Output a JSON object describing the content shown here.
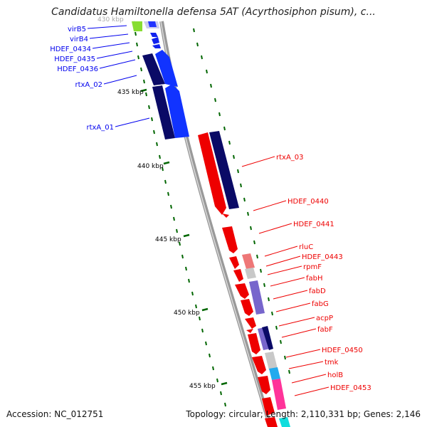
{
  "title": "Candidatus Hamiltonella defensa 5AT (Acyrthosiphon pisum), c...",
  "footer": {
    "accession": "Accession: NC_012751",
    "summary": "Topology: circular; Length: 2,110,331 bp; Genes: 2,146"
  },
  "colors": {
    "plus_strand": "#0000ee",
    "minus_strand": "#ee0000",
    "backbone": "#999999",
    "tick": "#006600"
  },
  "scale_labels": [
    "430 kbp",
    "435 kbp",
    "440 kbp",
    "445 kbp",
    "450 kbp",
    "455 kbp"
  ],
  "genes_left": [
    {
      "name": "virB5"
    },
    {
      "name": "virB4"
    },
    {
      "name": "HDEF_0434"
    },
    {
      "name": "HDEF_0435"
    },
    {
      "name": "HDEF_0436"
    },
    {
      "name": "rtxA_02"
    },
    {
      "name": "rtxA_01"
    }
  ],
  "genes_right": [
    {
      "name": "rtxA_03"
    },
    {
      "name": "HDEF_0440"
    },
    {
      "name": "HDEF_0441"
    },
    {
      "name": "rluC"
    },
    {
      "name": "HDEF_0443"
    },
    {
      "name": "rpmF"
    },
    {
      "name": "fabH"
    },
    {
      "name": "fabD"
    },
    {
      "name": "fabG"
    },
    {
      "name": "acpP"
    },
    {
      "name": "fabF"
    },
    {
      "name": "HDEF_0450"
    },
    {
      "name": "tmk"
    },
    {
      "name": "holB"
    },
    {
      "name": "HDEF_0453"
    }
  ]
}
